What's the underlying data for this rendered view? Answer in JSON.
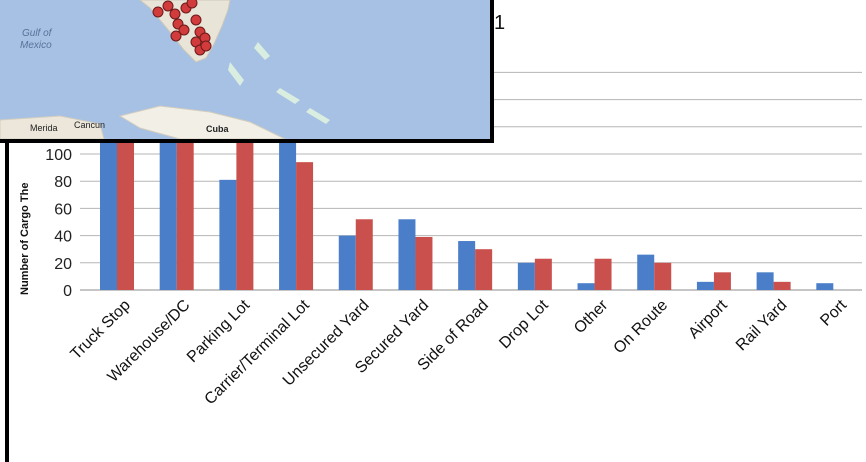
{
  "chart_data": {
    "type": "bar",
    "ylabel": "Number of Cargo The",
    "ylim": [
      0,
      120
    ],
    "yticks": [
      0,
      20,
      40,
      60,
      80,
      100
    ],
    "categories": [
      "Truck Stop",
      "Warehouse/DC",
      "Parking Lot",
      "Carrier/Terminal Lot",
      "Unsecured Yard",
      "Secured Yard",
      "Side of Road",
      "Drop Lot",
      "Other",
      "On Route",
      "Airport",
      "Rail Yard",
      "Port"
    ],
    "series": [
      {
        "color": "#4a7ec8",
        "values": [
          130,
          130,
          81,
          130,
          40,
          52,
          36,
          20,
          5,
          26,
          6,
          13,
          5
        ]
      },
      {
        "color": "#c9504d",
        "values": [
          130,
          130,
          130,
          94,
          52,
          39,
          30,
          23,
          23,
          20,
          13,
          6,
          0
        ]
      }
    ],
    "grid": true
  },
  "map": {
    "water_labels": [
      "Gulf of",
      "Mexico"
    ],
    "places": [
      "Merida",
      "Cancun",
      "Cuba"
    ]
  },
  "stray_text": "1"
}
